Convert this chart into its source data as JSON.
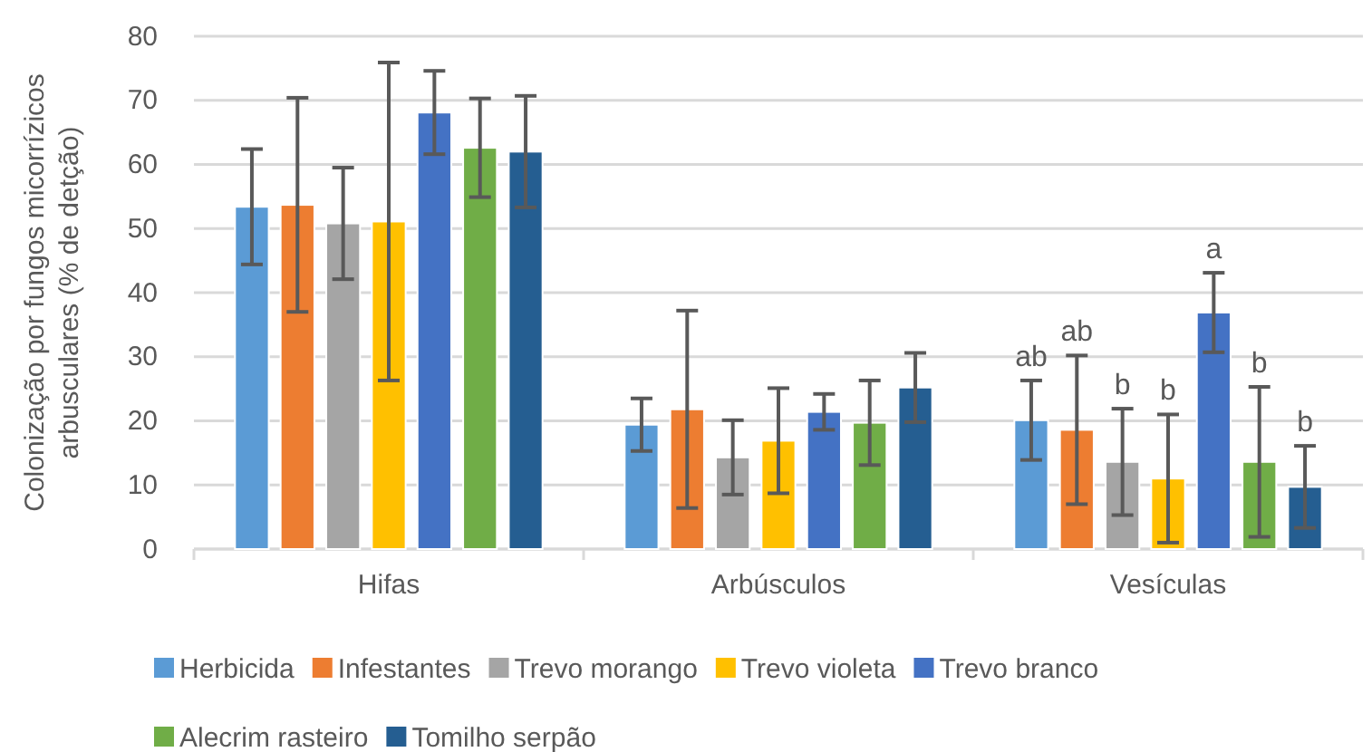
{
  "chart_data": {
    "type": "bar",
    "ylabel": "Colonização por fungos micorrízicos arbusculares (% de detção)",
    "categories": [
      "Hifas",
      "Arbúsculos",
      "Vesículas"
    ],
    "series": [
      {
        "name": "Herbicida",
        "color": "#5b9bd5",
        "values": [
          53.4,
          19.4,
          20.1
        ],
        "errors": [
          9,
          4.1,
          6.2
        ]
      },
      {
        "name": "Infestantes",
        "color": "#ed7d31",
        "values": [
          53.7,
          21.8,
          18.6
        ],
        "errors": [
          16.7,
          15.4,
          11.6
        ]
      },
      {
        "name": "Trevo morango",
        "color": "#a5a5a5",
        "values": [
          50.8,
          14.3,
          13.6
        ],
        "errors": [
          8.7,
          5.8,
          8.3
        ]
      },
      {
        "name": "Trevo violeta",
        "color": "#ffc000",
        "values": [
          51.1,
          16.9,
          11.0
        ],
        "errors": [
          24.8,
          8.2,
          10
        ]
      },
      {
        "name": "Trevo branco",
        "color": "#4472c4",
        "values": [
          68.1,
          21.4,
          36.9
        ],
        "errors": [
          6.5,
          2.8,
          6.2
        ]
      },
      {
        "name": "Alecrim rasteiro",
        "color": "#70ad47",
        "values": [
          62.6,
          19.7,
          13.6
        ],
        "errors": [
          7.7,
          6.6,
          11.7
        ]
      },
      {
        "name": "Tomilho serpão",
        "color": "#255e91",
        "values": [
          62.0,
          25.2,
          9.7
        ],
        "errors": [
          8.7,
          5.4,
          6.4
        ]
      }
    ],
    "annotations": [
      "ab",
      "ab",
      "b",
      "b",
      "a",
      "b",
      "b"
    ],
    "ylim": [
      0,
      80
    ],
    "yticks": [
      0,
      10,
      20,
      30,
      40,
      50,
      60,
      70,
      80
    ],
    "grid": "y",
    "legend": "bottom"
  }
}
